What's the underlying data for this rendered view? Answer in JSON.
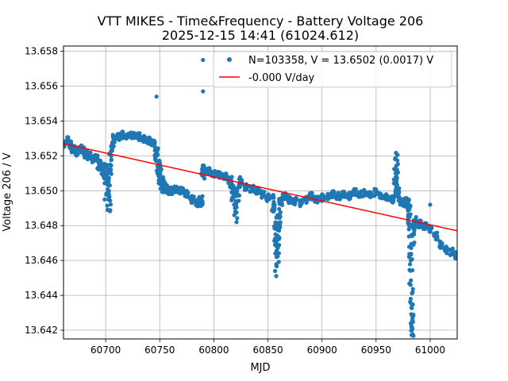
{
  "chart_data": {
    "type": "scatter",
    "title": "VTT MIKES - Time&Frequency - Battery Voltage 206",
    "subtitle": "2025-12-15 14:41 (61024.612)",
    "xlabel": "MJD",
    "ylabel": "Voltage 206 / V",
    "xlim": [
      60661,
      61025
    ],
    "ylim": [
      13.6415,
      13.6583
    ],
    "x_ticks": [
      60700,
      60750,
      60800,
      60850,
      60900,
      60950,
      61000
    ],
    "x_tick_labels": [
      "60700",
      "60750",
      "60800",
      "60850",
      "60900",
      "60950",
      "61000"
    ],
    "y_ticks": [
      13.642,
      13.644,
      13.646,
      13.648,
      13.65,
      13.652,
      13.654,
      13.656,
      13.658
    ],
    "y_tick_labels": [
      "13.642",
      "13.644",
      "13.646",
      "13.648",
      "13.650",
      "13.652",
      "13.654",
      "13.656",
      "13.658"
    ],
    "grid": true,
    "legend_position": "top-right",
    "colors": {
      "points": "#1f77b4",
      "fit": "#ff0000"
    },
    "series": [
      {
        "name": "N=103358, V = 13.6502 (0.0017) V",
        "kind": "points",
        "x": [
          60661,
          60664,
          60667,
          60670,
          60673,
          60676,
          60679,
          60682,
          60685,
          60688,
          60691,
          60694,
          60697,
          60700,
          60702,
          60703,
          60704,
          60706,
          60708,
          60711,
          60715,
          60720,
          60725,
          60730,
          60735,
          60740,
          60744,
          60747,
          60749,
          60750,
          60752,
          60754,
          60757,
          60760,
          60765,
          60770,
          60775,
          60780,
          60785,
          60788,
          60790,
          60791,
          60795,
          60800,
          60805,
          60810,
          60815,
          60818,
          60820,
          60822,
          60825,
          60830,
          60835,
          60840,
          60845,
          60850,
          60855,
          60857,
          60858,
          60859,
          60860,
          60862,
          60865,
          60870,
          60875,
          60880,
          60885,
          60890,
          60895,
          60900,
          60905,
          60910,
          60915,
          60920,
          60925,
          60930,
          60935,
          60940,
          60945,
          60950,
          60955,
          60960,
          60965,
          60968,
          60969,
          60970,
          60972,
          60975,
          60978,
          60980,
          60981,
          60982,
          60983,
          60983,
          60984,
          60986,
          60990,
          60995,
          61000,
          61005,
          61010,
          61015,
          61020,
          61024,
          60699,
          60703,
          60747,
          60790,
          60790,
          60820,
          60821,
          60858,
          60968,
          60982,
          60982,
          60983,
          61000
        ],
        "y": [
          13.6527,
          13.6529,
          13.6526,
          13.6524,
          13.6522,
          13.6524,
          13.6523,
          13.6521,
          13.652,
          13.6518,
          13.6519,
          13.6515,
          13.6512,
          13.651,
          13.6505,
          13.6498,
          13.6515,
          13.6525,
          13.653,
          13.6531,
          13.6532,
          13.6531,
          13.6532,
          13.6531,
          13.653,
          13.6529,
          13.6527,
          13.6521,
          13.6515,
          13.651,
          13.6505,
          13.6502,
          13.6501,
          13.65,
          13.6501,
          13.65,
          13.6498,
          13.6495,
          13.6493,
          13.6494,
          13.651,
          13.6512,
          13.6511,
          13.651,
          13.6509,
          13.6508,
          13.6505,
          13.6498,
          13.6492,
          13.6498,
          13.6505,
          13.6502,
          13.6501,
          13.65,
          13.6498,
          13.6496,
          13.6492,
          13.6475,
          13.6462,
          13.6468,
          13.6485,
          13.6493,
          13.6497,
          13.6495,
          13.6494,
          13.6493,
          13.6495,
          13.6497,
          13.6495,
          13.6496,
          13.6497,
          13.6498,
          13.6497,
          13.6498,
          13.6497,
          13.6499,
          13.6498,
          13.6499,
          13.6498,
          13.6499,
          13.6497,
          13.6496,
          13.6495,
          13.6505,
          13.651,
          13.6498,
          13.6494,
          13.6493,
          13.6494,
          13.6492,
          13.6485,
          13.646,
          13.6435,
          13.6422,
          13.6475,
          13.6482,
          13.6481,
          13.648,
          13.6478,
          13.6474,
          13.6469,
          13.6466,
          13.6465,
          13.6463,
          13.6495,
          13.6496,
          13.6554,
          13.6575,
          13.6557,
          13.6488,
          13.6482,
          13.6478,
          13.651,
          13.6438,
          13.6446,
          13.642,
          13.6492
        ],
        "spreads": [
          0.0002,
          0.0002,
          0.0003,
          0.0002,
          0.0002,
          0.0002,
          0.0002,
          0.0002,
          0.0002,
          0.0002,
          0.0002,
          0.0003,
          0.0004,
          0.0006,
          0.0008,
          0.001,
          0.0008,
          0.0004,
          0.0003,
          0.0002,
          0.0002,
          0.0002,
          0.0002,
          0.0002,
          0.0002,
          0.0002,
          0.0002,
          0.0004,
          0.0006,
          0.0006,
          0.0004,
          0.0003,
          0.0003,
          0.0002,
          0.0002,
          0.0002,
          0.0002,
          0.0002,
          0.0002,
          0.0003,
          0.0004,
          0.0003,
          0.0002,
          0.0002,
          0.0002,
          0.0002,
          0.0003,
          0.0006,
          0.001,
          0.0006,
          0.0003,
          0.0002,
          0.0002,
          0.0002,
          0.0002,
          0.0002,
          0.0006,
          0.001,
          0.0014,
          0.0012,
          0.0006,
          0.0003,
          0.0002,
          0.0002,
          0.0002,
          0.0002,
          0.0002,
          0.0002,
          0.0002,
          0.0002,
          0.0002,
          0.0002,
          0.0002,
          0.0002,
          0.0002,
          0.0002,
          0.0002,
          0.0002,
          0.0002,
          0.0002,
          0.0002,
          0.0002,
          0.0002,
          0.0008,
          0.0012,
          0.0004,
          0.0002,
          0.0002,
          0.0002,
          0.0003,
          0.0008,
          0.0016,
          0.0016,
          0.0008,
          0.0006,
          0.0003,
          0.0002,
          0.0002,
          0.0002,
          0.0002,
          0.0002,
          0.0002,
          0.0002,
          0.0002,
          0,
          0,
          0,
          0,
          0,
          0,
          0,
          0,
          0,
          0,
          0,
          0,
          0
        ]
      },
      {
        "name": "-0.000 V/day",
        "kind": "line",
        "x": [
          60661,
          61025
        ],
        "y": [
          13.6527,
          13.6477
        ]
      }
    ]
  }
}
